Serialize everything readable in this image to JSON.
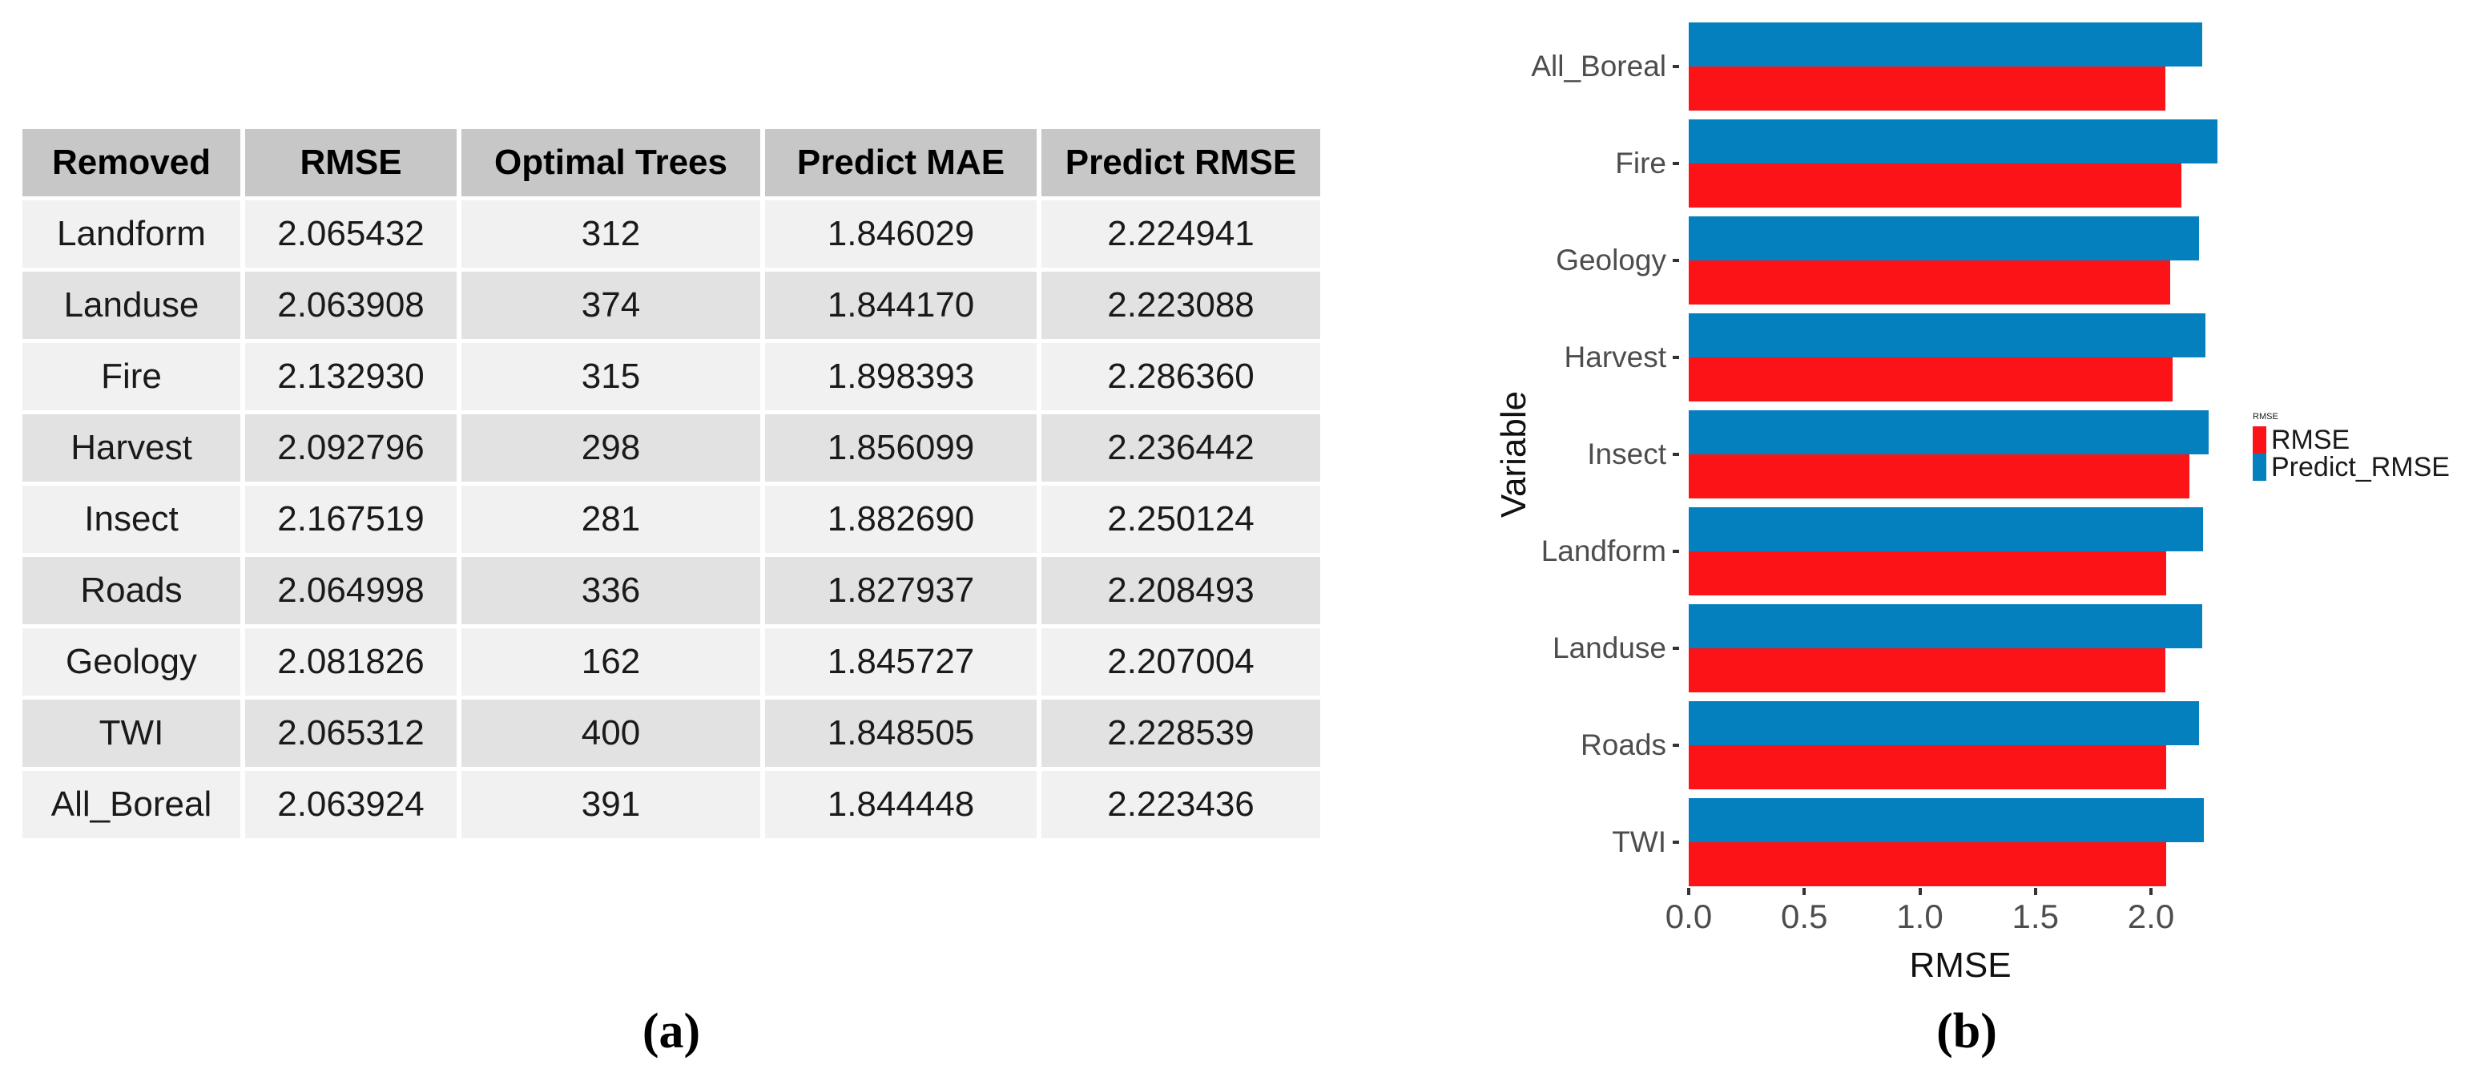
{
  "figure": {
    "panel_a_caption": "(a)",
    "panel_b_caption": "(b)"
  },
  "table": {
    "headers": [
      "Removed",
      "RMSE",
      "Optimal Trees",
      "Predict MAE",
      "Predict RMSE"
    ],
    "rows": [
      [
        "Landform",
        "2.065432",
        "312",
        "1.846029",
        "2.224941"
      ],
      [
        "Landuse",
        "2.063908",
        "374",
        "1.844170",
        "2.223088"
      ],
      [
        "Fire",
        "2.132930",
        "315",
        "1.898393",
        "2.286360"
      ],
      [
        "Harvest",
        "2.092796",
        "298",
        "1.856099",
        "2.236442"
      ],
      [
        "Insect",
        "2.167519",
        "281",
        "1.882690",
        "2.250124"
      ],
      [
        "Roads",
        "2.064998",
        "336",
        "1.827937",
        "2.208493"
      ],
      [
        "Geology",
        "2.081826",
        "162",
        "1.845727",
        "2.207004"
      ],
      [
        "TWI",
        "2.065312",
        "400",
        "1.848505",
        "2.228539"
      ],
      [
        "All_Boreal",
        "2.063924",
        "391",
        "1.844448",
        "2.223436"
      ]
    ]
  },
  "chart_data": {
    "type": "bar",
    "orientation": "horizontal",
    "title": "",
    "xlabel": "RMSE",
    "ylabel": "Variable",
    "categories": [
      "All_Boreal",
      "Fire",
      "Geology",
      "Harvest",
      "Insect",
      "Landform",
      "Landuse",
      "Roads",
      "TWI"
    ],
    "series": [
      {
        "name": "RMSE",
        "color": "#fb1317",
        "values": [
          2.063924,
          2.13293,
          2.081826,
          2.092796,
          2.167519,
          2.065432,
          2.063908,
          2.064998,
          2.065312
        ]
      },
      {
        "name": "Predict_RMSE",
        "color": "#0580be",
        "values": [
          2.223436,
          2.28636,
          2.207004,
          2.236442,
          2.250124,
          2.224941,
          2.223088,
          2.208493,
          2.228539
        ]
      }
    ],
    "xlim": [
      0,
      2.35
    ],
    "xticks": [
      0.0,
      0.5,
      1.0,
      1.5,
      2.0
    ],
    "xtick_labels": [
      "0.0",
      "0.5",
      "1.0",
      "1.5",
      "2.0"
    ],
    "grid": false,
    "legend_title": "RMSE",
    "legend_position": "right"
  },
  "colors": {
    "table_header_bg": "#c7c7c7",
    "table_row_light": "#f1f1f1",
    "table_row_dark": "#e2e2e2"
  }
}
